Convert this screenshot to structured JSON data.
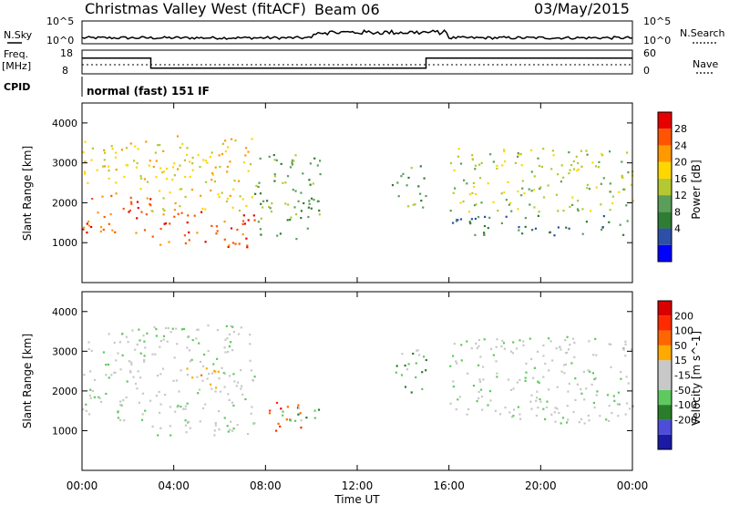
{
  "header": {
    "station": "Christmas Valley West (fitACF)",
    "beam": "Beam 06",
    "date": "03/May/2015"
  },
  "noise_panel": {
    "left_label": "N.Sky",
    "right_label": "N.Search",
    "left_ticks": [
      "10^5",
      "10^0"
    ],
    "right_ticks": [
      "10^5",
      "10^0"
    ]
  },
  "freq_panel": {
    "left_label_1": "Freq.",
    "left_label_2": "[MHz]",
    "right_label": "Nave",
    "left_ticks": [
      "18",
      "8"
    ],
    "right_ticks": [
      "60",
      "0"
    ],
    "freq_mhz_segments": [
      {
        "start": "00:00",
        "end": "03:00",
        "value": 14.6
      },
      {
        "start": "03:00",
        "end": "15:00",
        "value": 10.4
      },
      {
        "start": "15:00",
        "end": "24:00",
        "value": 14.6
      }
    ]
  },
  "cpid": {
    "label": "CPID",
    "value": "normal (fast) 151 IF"
  },
  "x_axis": {
    "title": "Time UT",
    "ticks": [
      "00:00",
      "04:00",
      "08:00",
      "12:00",
      "16:00",
      "20:00",
      "00:00"
    ]
  },
  "colors": {
    "power": [
      "#0000ff",
      "#2e4fa8",
      "#2e7d32",
      "#5a9e5a",
      "#b5c832",
      "#ffd700",
      "#ff9900",
      "#ff5500",
      "#e60000"
    ],
    "velocity": [
      "#1a1aa6",
      "#4d4dd9",
      "#2a7d2a",
      "#5ec95e",
      "#c8c8c8",
      "#c8c8c8",
      "#ffaa00",
      "#ff6600",
      "#ff2a00",
      "#d90000"
    ]
  },
  "chart_data": [
    {
      "type": "heatmap",
      "name": "power",
      "ylabel": "Slant Range [km]",
      "yticks": [
        1000,
        2000,
        3000,
        4000
      ],
      "ylim": [
        0,
        4500
      ],
      "colorbar_label": "Power [dB]",
      "colorbar_ticks": [
        28,
        24,
        20,
        16,
        12,
        8,
        4
      ],
      "scatter_regions": [
        {
          "t0": 0.0,
          "t1": 3.0,
          "r0": 1250,
          "r1": 2350,
          "level": 7
        },
        {
          "t0": 0.0,
          "t1": 3.0,
          "r0": 2350,
          "r1": 3600,
          "level": 5
        },
        {
          "t0": 3.0,
          "t1": 7.5,
          "r0": 900,
          "r1": 1800,
          "level": 7
        },
        {
          "t0": 3.0,
          "t1": 7.5,
          "r0": 1800,
          "r1": 3700,
          "level": 5
        },
        {
          "t0": 7.5,
          "t1": 10.5,
          "r0": 1100,
          "r1": 3300,
          "level": 3
        },
        {
          "t0": 13.5,
          "t1": 15.0,
          "r0": 1900,
          "r1": 3000,
          "level": 3
        },
        {
          "t0": 16.0,
          "t1": 24.0,
          "r0": 1200,
          "r1": 1700,
          "level": 2
        },
        {
          "t0": 16.0,
          "t1": 24.0,
          "r0": 1800,
          "r1": 3400,
          "level": 4
        }
      ]
    },
    {
      "type": "heatmap",
      "name": "velocity",
      "ylabel": "Slant Range [km]",
      "yticks": [
        1000,
        2000,
        3000,
        4000
      ],
      "ylim": [
        0,
        4500
      ],
      "colorbar_label": "Velocity [m s^-1]",
      "colorbar_ticks": [
        200,
        100,
        50,
        15,
        -15,
        -50,
        -100,
        -200
      ],
      "scatter_regions": [
        {
          "t0": 0.0,
          "t1": 3.0,
          "r0": 1250,
          "r1": 3600,
          "level": 4
        },
        {
          "t0": 3.0,
          "t1": 7.5,
          "r0": 900,
          "r1": 3700,
          "level": 4
        },
        {
          "t0": 4.0,
          "t1": 6.0,
          "r0": 2000,
          "r1": 2600,
          "level": 6
        },
        {
          "t0": 8.0,
          "t1": 9.6,
          "r0": 950,
          "r1": 1750,
          "level": 8
        },
        {
          "t0": 8.5,
          "t1": 10.5,
          "r0": 1100,
          "r1": 1600,
          "level": 3
        },
        {
          "t0": 13.5,
          "t1": 15.0,
          "r0": 1900,
          "r1": 3100,
          "level": 3
        },
        {
          "t0": 16.0,
          "t1": 24.0,
          "r0": 1200,
          "r1": 3400,
          "level": 4
        }
      ]
    }
  ]
}
